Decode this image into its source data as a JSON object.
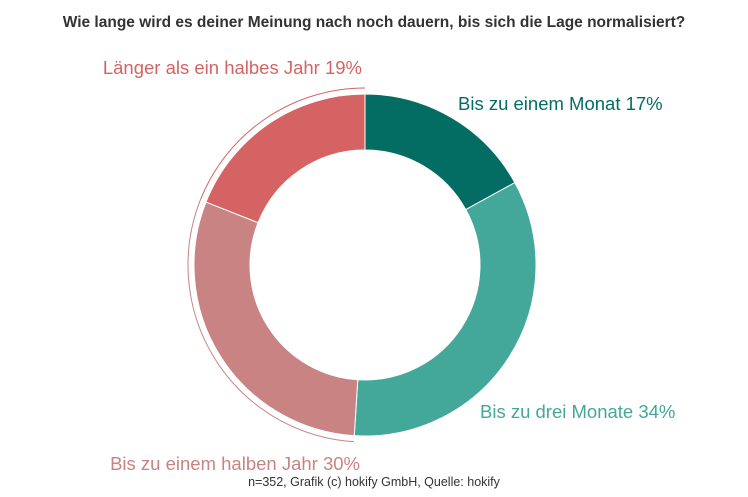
{
  "chart_data": {
    "type": "pie",
    "donut": true,
    "title": "Wie lange wird es deiner Meinung nach noch dauern, bis sich die Lage normalisiert?",
    "slices": [
      {
        "label": "Bis zu einem Monat",
        "value": 17,
        "text": "Bis zu einem Monat 17%",
        "color": "#036d63"
      },
      {
        "label": "Bis zu drei Monate",
        "value": 34,
        "text": "Bis zu drei Monate 34%",
        "color": "#43a899"
      },
      {
        "label": "Bis zu einem halben Jahr",
        "value": 30,
        "text": "Bis zu einem halben Jahr 30%",
        "color": "#c98383"
      },
      {
        "label": "Länger als ein halbes Jahr",
        "value": 19,
        "text": "Länger als ein halbes Jahr 19%",
        "color": "#d66363"
      }
    ],
    "source": "n=352, Grafik (c) hokify GmbH, Quelle: hokify"
  }
}
